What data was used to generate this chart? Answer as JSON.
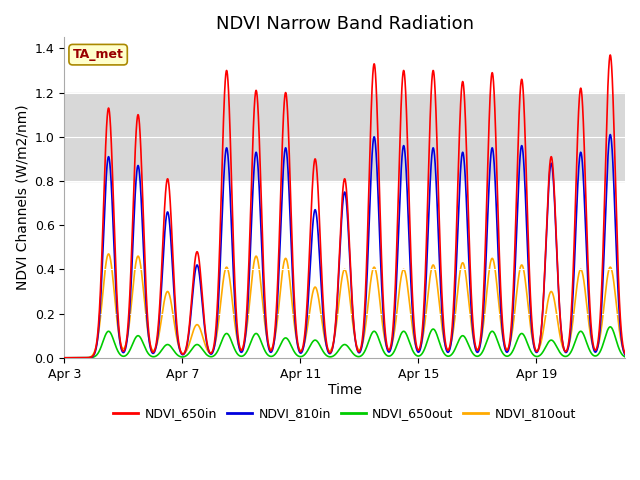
{
  "title": "NDVI Narrow Band Radiation",
  "ylabel": "NDVI Channels (W/m2/nm)",
  "xlabel": "Time",
  "ylim": [
    0.0,
    1.45
  ],
  "yticks": [
    0.0,
    0.2,
    0.4,
    0.6,
    0.8,
    1.0,
    1.2,
    1.4
  ],
  "xtick_labels": [
    "Apr 3",
    "Apr 7",
    "Apr 11",
    "Apr 15",
    "Apr 19"
  ],
  "xtick_positions": [
    0,
    4,
    8,
    12,
    16
  ],
  "shaded_band": [
    0.8,
    1.2
  ],
  "shaded_color": "#d8d8d8",
  "legend_entries": [
    "NDVI_650in",
    "NDVI_810in",
    "NDVI_650out",
    "NDVI_810out"
  ],
  "line_colors": [
    "#ff0000",
    "#0000dd",
    "#00cc00",
    "#ffaa00"
  ],
  "ta_met_label": "TA_met",
  "ta_met_color": "#990000",
  "ta_met_bg": "#ffffcc",
  "ta_met_border": "#aa8800",
  "title_fontsize": 13,
  "label_fontsize": 10,
  "legend_fontsize": 9,
  "axes_bg": "#ffffff",
  "n_days": 19,
  "peak_650in": [
    0.0,
    1.13,
    1.1,
    0.81,
    0.48,
    1.3,
    1.21,
    1.2,
    0.9,
    0.81,
    1.33,
    1.3,
    1.3,
    1.25,
    1.29,
    1.26,
    0.91,
    1.22,
    1.37
  ],
  "peak_810in": [
    0.0,
    0.91,
    0.87,
    0.66,
    0.42,
    0.95,
    0.93,
    0.95,
    0.67,
    0.75,
    1.0,
    0.96,
    0.95,
    0.93,
    0.95,
    0.96,
    0.88,
    0.93,
    1.01
  ],
  "peak_650out": [
    0.0,
    0.12,
    0.1,
    0.06,
    0.06,
    0.11,
    0.11,
    0.09,
    0.08,
    0.06,
    0.12,
    0.12,
    0.13,
    0.1,
    0.12,
    0.11,
    0.08,
    0.12,
    0.14
  ],
  "peak_810out": [
    0.0,
    0.47,
    0.46,
    0.3,
    0.15,
    0.41,
    0.46,
    0.45,
    0.32,
    0.4,
    0.41,
    0.4,
    0.42,
    0.43,
    0.45,
    0.42,
    0.3,
    0.4,
    0.41
  ]
}
